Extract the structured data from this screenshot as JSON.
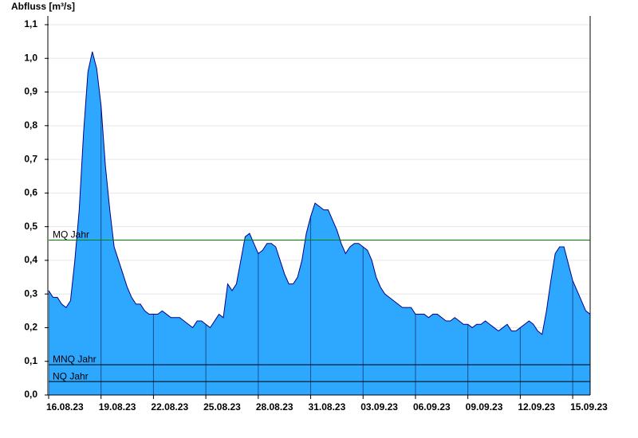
{
  "chart_data": {
    "type": "area",
    "y_label": "Abfluss [m³/s]",
    "x": [
      "2023-08-16 00:00",
      "2023-08-16 06:00",
      "2023-08-16 12:00",
      "2023-08-16 18:00",
      "2023-08-17 00:00",
      "2023-08-17 06:00",
      "2023-08-17 12:00",
      "2023-08-17 18:00",
      "2023-08-18 00:00",
      "2023-08-18 06:00",
      "2023-08-18 12:00",
      "2023-08-18 18:00",
      "2023-08-19 00:00",
      "2023-08-19 06:00",
      "2023-08-19 12:00",
      "2023-08-19 18:00",
      "2023-08-20 00:00",
      "2023-08-20 06:00",
      "2023-08-20 12:00",
      "2023-08-20 18:00",
      "2023-08-21 00:00",
      "2023-08-21 06:00",
      "2023-08-21 12:00",
      "2023-08-21 18:00",
      "2023-08-22 00:00",
      "2023-08-22 06:00",
      "2023-08-22 12:00",
      "2023-08-22 18:00",
      "2023-08-23 00:00",
      "2023-08-23 06:00",
      "2023-08-23 12:00",
      "2023-08-23 18:00",
      "2023-08-24 00:00",
      "2023-08-24 06:00",
      "2023-08-24 12:00",
      "2023-08-24 18:00",
      "2023-08-25 00:00",
      "2023-08-25 06:00",
      "2023-08-25 12:00",
      "2023-08-25 18:00",
      "2023-08-26 00:00",
      "2023-08-26 06:00",
      "2023-08-26 12:00",
      "2023-08-26 18:00",
      "2023-08-27 00:00",
      "2023-08-27 06:00",
      "2023-08-27 12:00",
      "2023-08-27 18:00",
      "2023-08-28 00:00",
      "2023-08-28 06:00",
      "2023-08-28 12:00",
      "2023-08-28 18:00",
      "2023-08-29 00:00",
      "2023-08-29 06:00",
      "2023-08-29 12:00",
      "2023-08-29 18:00",
      "2023-08-30 00:00",
      "2023-08-30 06:00",
      "2023-08-30 12:00",
      "2023-08-30 18:00",
      "2023-08-31 00:00",
      "2023-08-31 06:00",
      "2023-08-31 12:00",
      "2023-08-31 18:00",
      "2023-09-01 00:00",
      "2023-09-01 06:00",
      "2023-09-01 12:00",
      "2023-09-01 18:00",
      "2023-09-02 00:00",
      "2023-09-02 06:00",
      "2023-09-02 12:00",
      "2023-09-02 18:00",
      "2023-09-03 00:00",
      "2023-09-03 06:00",
      "2023-09-03 12:00",
      "2023-09-03 18:00",
      "2023-09-04 00:00",
      "2023-09-04 06:00",
      "2023-09-04 12:00",
      "2023-09-04 18:00",
      "2023-09-05 00:00",
      "2023-09-05 06:00",
      "2023-09-05 12:00",
      "2023-09-05 18:00",
      "2023-09-06 00:00",
      "2023-09-06 06:00",
      "2023-09-06 12:00",
      "2023-09-06 18:00",
      "2023-09-07 00:00",
      "2023-09-07 06:00",
      "2023-09-07 12:00",
      "2023-09-07 18:00",
      "2023-09-08 00:00",
      "2023-09-08 06:00",
      "2023-09-08 12:00",
      "2023-09-08 18:00",
      "2023-09-09 00:00",
      "2023-09-09 06:00",
      "2023-09-09 12:00",
      "2023-09-09 18:00",
      "2023-09-10 00:00",
      "2023-09-10 06:00",
      "2023-09-10 12:00",
      "2023-09-10 18:00",
      "2023-09-11 00:00",
      "2023-09-11 06:00",
      "2023-09-11 12:00",
      "2023-09-11 18:00",
      "2023-09-12 00:00",
      "2023-09-12 06:00",
      "2023-09-12 12:00",
      "2023-09-12 18:00",
      "2023-09-13 00:00",
      "2023-09-13 06:00",
      "2023-09-13 12:00",
      "2023-09-13 18:00",
      "2023-09-14 00:00",
      "2023-09-14 06:00",
      "2023-09-14 12:00",
      "2023-09-14 18:00",
      "2023-09-15 00:00",
      "2023-09-15 06:00",
      "2023-09-15 12:00",
      "2023-09-15 18:00",
      "2023-09-16 00:00"
    ],
    "series": [
      {
        "color": "#2ea8ff",
        "line_color": "#00008b",
        "values": [
          0.31,
          0.29,
          0.29,
          0.27,
          0.26,
          0.28,
          0.4,
          0.55,
          0.78,
          0.96,
          1.02,
          0.97,
          0.86,
          0.68,
          0.55,
          0.44,
          0.4,
          0.36,
          0.32,
          0.29,
          0.27,
          0.27,
          0.25,
          0.24,
          0.24,
          0.24,
          0.25,
          0.24,
          0.23,
          0.23,
          0.23,
          0.22,
          0.21,
          0.2,
          0.22,
          0.22,
          0.21,
          0.2,
          0.22,
          0.24,
          0.23,
          0.33,
          0.31,
          0.33,
          0.4,
          0.47,
          0.48,
          0.45,
          0.42,
          0.43,
          0.45,
          0.45,
          0.44,
          0.4,
          0.36,
          0.33,
          0.33,
          0.35,
          0.4,
          0.48,
          0.53,
          0.57,
          0.56,
          0.55,
          0.55,
          0.52,
          0.49,
          0.45,
          0.42,
          0.44,
          0.45,
          0.45,
          0.44,
          0.43,
          0.4,
          0.35,
          0.32,
          0.3,
          0.29,
          0.28,
          0.27,
          0.26,
          0.26,
          0.26,
          0.24,
          0.24,
          0.24,
          0.23,
          0.24,
          0.24,
          0.23,
          0.22,
          0.22,
          0.23,
          0.22,
          0.21,
          0.21,
          0.2,
          0.21,
          0.21,
          0.22,
          0.21,
          0.2,
          0.19,
          0.2,
          0.21,
          0.19,
          0.19,
          0.2,
          0.21,
          0.22,
          0.21,
          0.19,
          0.18,
          0.25,
          0.34,
          0.42,
          0.44,
          0.44,
          0.39,
          0.34,
          0.31,
          0.28,
          0.25,
          0.24
        ]
      }
    ],
    "xlim": [
      "2023-08-16 00:00",
      "2023-09-16 00:00"
    ],
    "xticks": [
      {
        "value": "2023-08-16 00:00",
        "label": "16.08.23"
      },
      {
        "value": "2023-08-19 00:00",
        "label": "19.08.23"
      },
      {
        "value": "2023-08-22 00:00",
        "label": "22.08.23"
      },
      {
        "value": "2023-08-25 00:00",
        "label": "25.08.23"
      },
      {
        "value": "2023-08-28 00:00",
        "label": "28.08.23"
      },
      {
        "value": "2023-08-31 00:00",
        "label": "31.08.23"
      },
      {
        "value": "2023-09-03 00:00",
        "label": "03.09.23"
      },
      {
        "value": "2023-09-06 00:00",
        "label": "06.09.23"
      },
      {
        "value": "2023-09-09 00:00",
        "label": "09.09.23"
      },
      {
        "value": "2023-09-12 00:00",
        "label": "12.09.23"
      },
      {
        "value": "2023-09-15 00:00",
        "label": "15.09.23"
      }
    ],
    "ylim": [
      0,
      1.1
    ],
    "yticks": [
      {
        "value": 0,
        "label": "0,0"
      },
      {
        "value": 0.1,
        "label": "0,1"
      },
      {
        "value": 0.2,
        "label": "0,2"
      },
      {
        "value": 0.3,
        "label": "0,3"
      },
      {
        "value": 0.4,
        "label": "0,4"
      },
      {
        "value": 0.5,
        "label": "0,5"
      },
      {
        "value": 0.6,
        "label": "0,6"
      },
      {
        "value": 0.7,
        "label": "0,7"
      },
      {
        "value": 0.8,
        "label": "0,8"
      },
      {
        "value": 0.9,
        "label": "0,9"
      },
      {
        "value": 1.0,
        "label": "1,0"
      },
      {
        "value": 1.1,
        "label": "1,1"
      }
    ],
    "grid": true,
    "reference_lines": [
      {
        "label": "MQ Jahr",
        "value": 0.46,
        "color": "#008000"
      },
      {
        "label": "MNQ Jahr",
        "value": 0.09,
        "color": "#000000"
      },
      {
        "label": "NQ Jahr",
        "value": 0.04,
        "color": "#000000"
      }
    ]
  }
}
